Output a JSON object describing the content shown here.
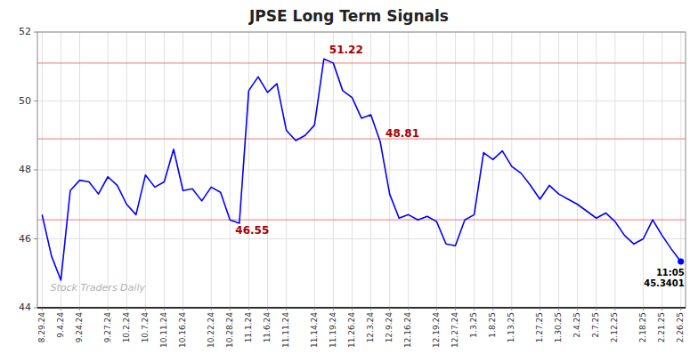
{
  "chart_data": {
    "type": "line",
    "title": "JPSE Long Term Signals",
    "categories": [
      "8.29.24",
      null,
      "9.4.24",
      null,
      "9.24.24",
      null,
      null,
      "9.27.24",
      null,
      "10.2.24",
      null,
      "10.7.24",
      null,
      "10.11.24",
      null,
      "10.16.24",
      null,
      null,
      "10.22.24",
      null,
      "10.28.24",
      null,
      "11.1.24",
      null,
      "11.6.24",
      null,
      "11.11.24",
      null,
      null,
      "11.14.24",
      null,
      "11.19.24",
      null,
      "11.26.24",
      null,
      "12.3.24",
      null,
      "12.9.24",
      null,
      "12.16.24",
      null,
      null,
      "12.19.24",
      null,
      "12.27.24",
      null,
      "1.3.25",
      null,
      "1.8.25",
      null,
      "1.13.25",
      null,
      null,
      "1.27.25",
      null,
      "1.30.25",
      null,
      "2.4.25",
      null,
      "2.7.25",
      null,
      "2.12.25",
      null,
      null,
      "2.18.25",
      null,
      "2.21.25",
      null,
      "2.26.25"
    ],
    "values": [
      46.7,
      45.5,
      44.8,
      47.4,
      47.7,
      47.65,
      47.3,
      47.8,
      47.55,
      47.0,
      46.7,
      47.85,
      47.5,
      47.65,
      48.6,
      47.4,
      47.45,
      47.1,
      47.5,
      47.35,
      46.55,
      46.45,
      50.3,
      50.7,
      50.25,
      50.5,
      49.15,
      48.85,
      49.0,
      49.3,
      51.22,
      51.1,
      50.3,
      50.1,
      49.5,
      49.6,
      48.81,
      47.3,
      46.6,
      46.7,
      46.55,
      46.65,
      46.5,
      45.85,
      45.8,
      46.55,
      46.7,
      48.5,
      48.3,
      48.55,
      48.1,
      47.9,
      47.55,
      47.15,
      47.55,
      47.3,
      47.15,
      47.0,
      46.8,
      46.6,
      46.75,
      46.5,
      46.1,
      45.85,
      46.0,
      46.55,
      46.1,
      45.7,
      45.34
    ],
    "color": "blue",
    "ylim": [
      44,
      52
    ],
    "yticks": [
      44,
      46,
      48,
      50,
      52
    ],
    "grid": true,
    "hlines": {
      "values": [
        51.1,
        48.9,
        46.55
      ],
      "color": "#f08080"
    },
    "annotations": [
      {
        "text": "51.22",
        "x": 30,
        "y": 51.22,
        "color": "#aa0000"
      },
      {
        "text": "48.81",
        "x": 36,
        "y": 48.81,
        "color": "#aa0000"
      },
      {
        "text": "46.55",
        "x": 20,
        "y": 46.55,
        "color": "#aa0000"
      },
      {
        "text": "11:05\n45.3401",
        "x": 68,
        "y": 45.34,
        "color": "black"
      }
    ],
    "end_point": {
      "x": 68,
      "y": 45.34,
      "color": "blue"
    },
    "watermark": "Stock Traders Daily"
  }
}
